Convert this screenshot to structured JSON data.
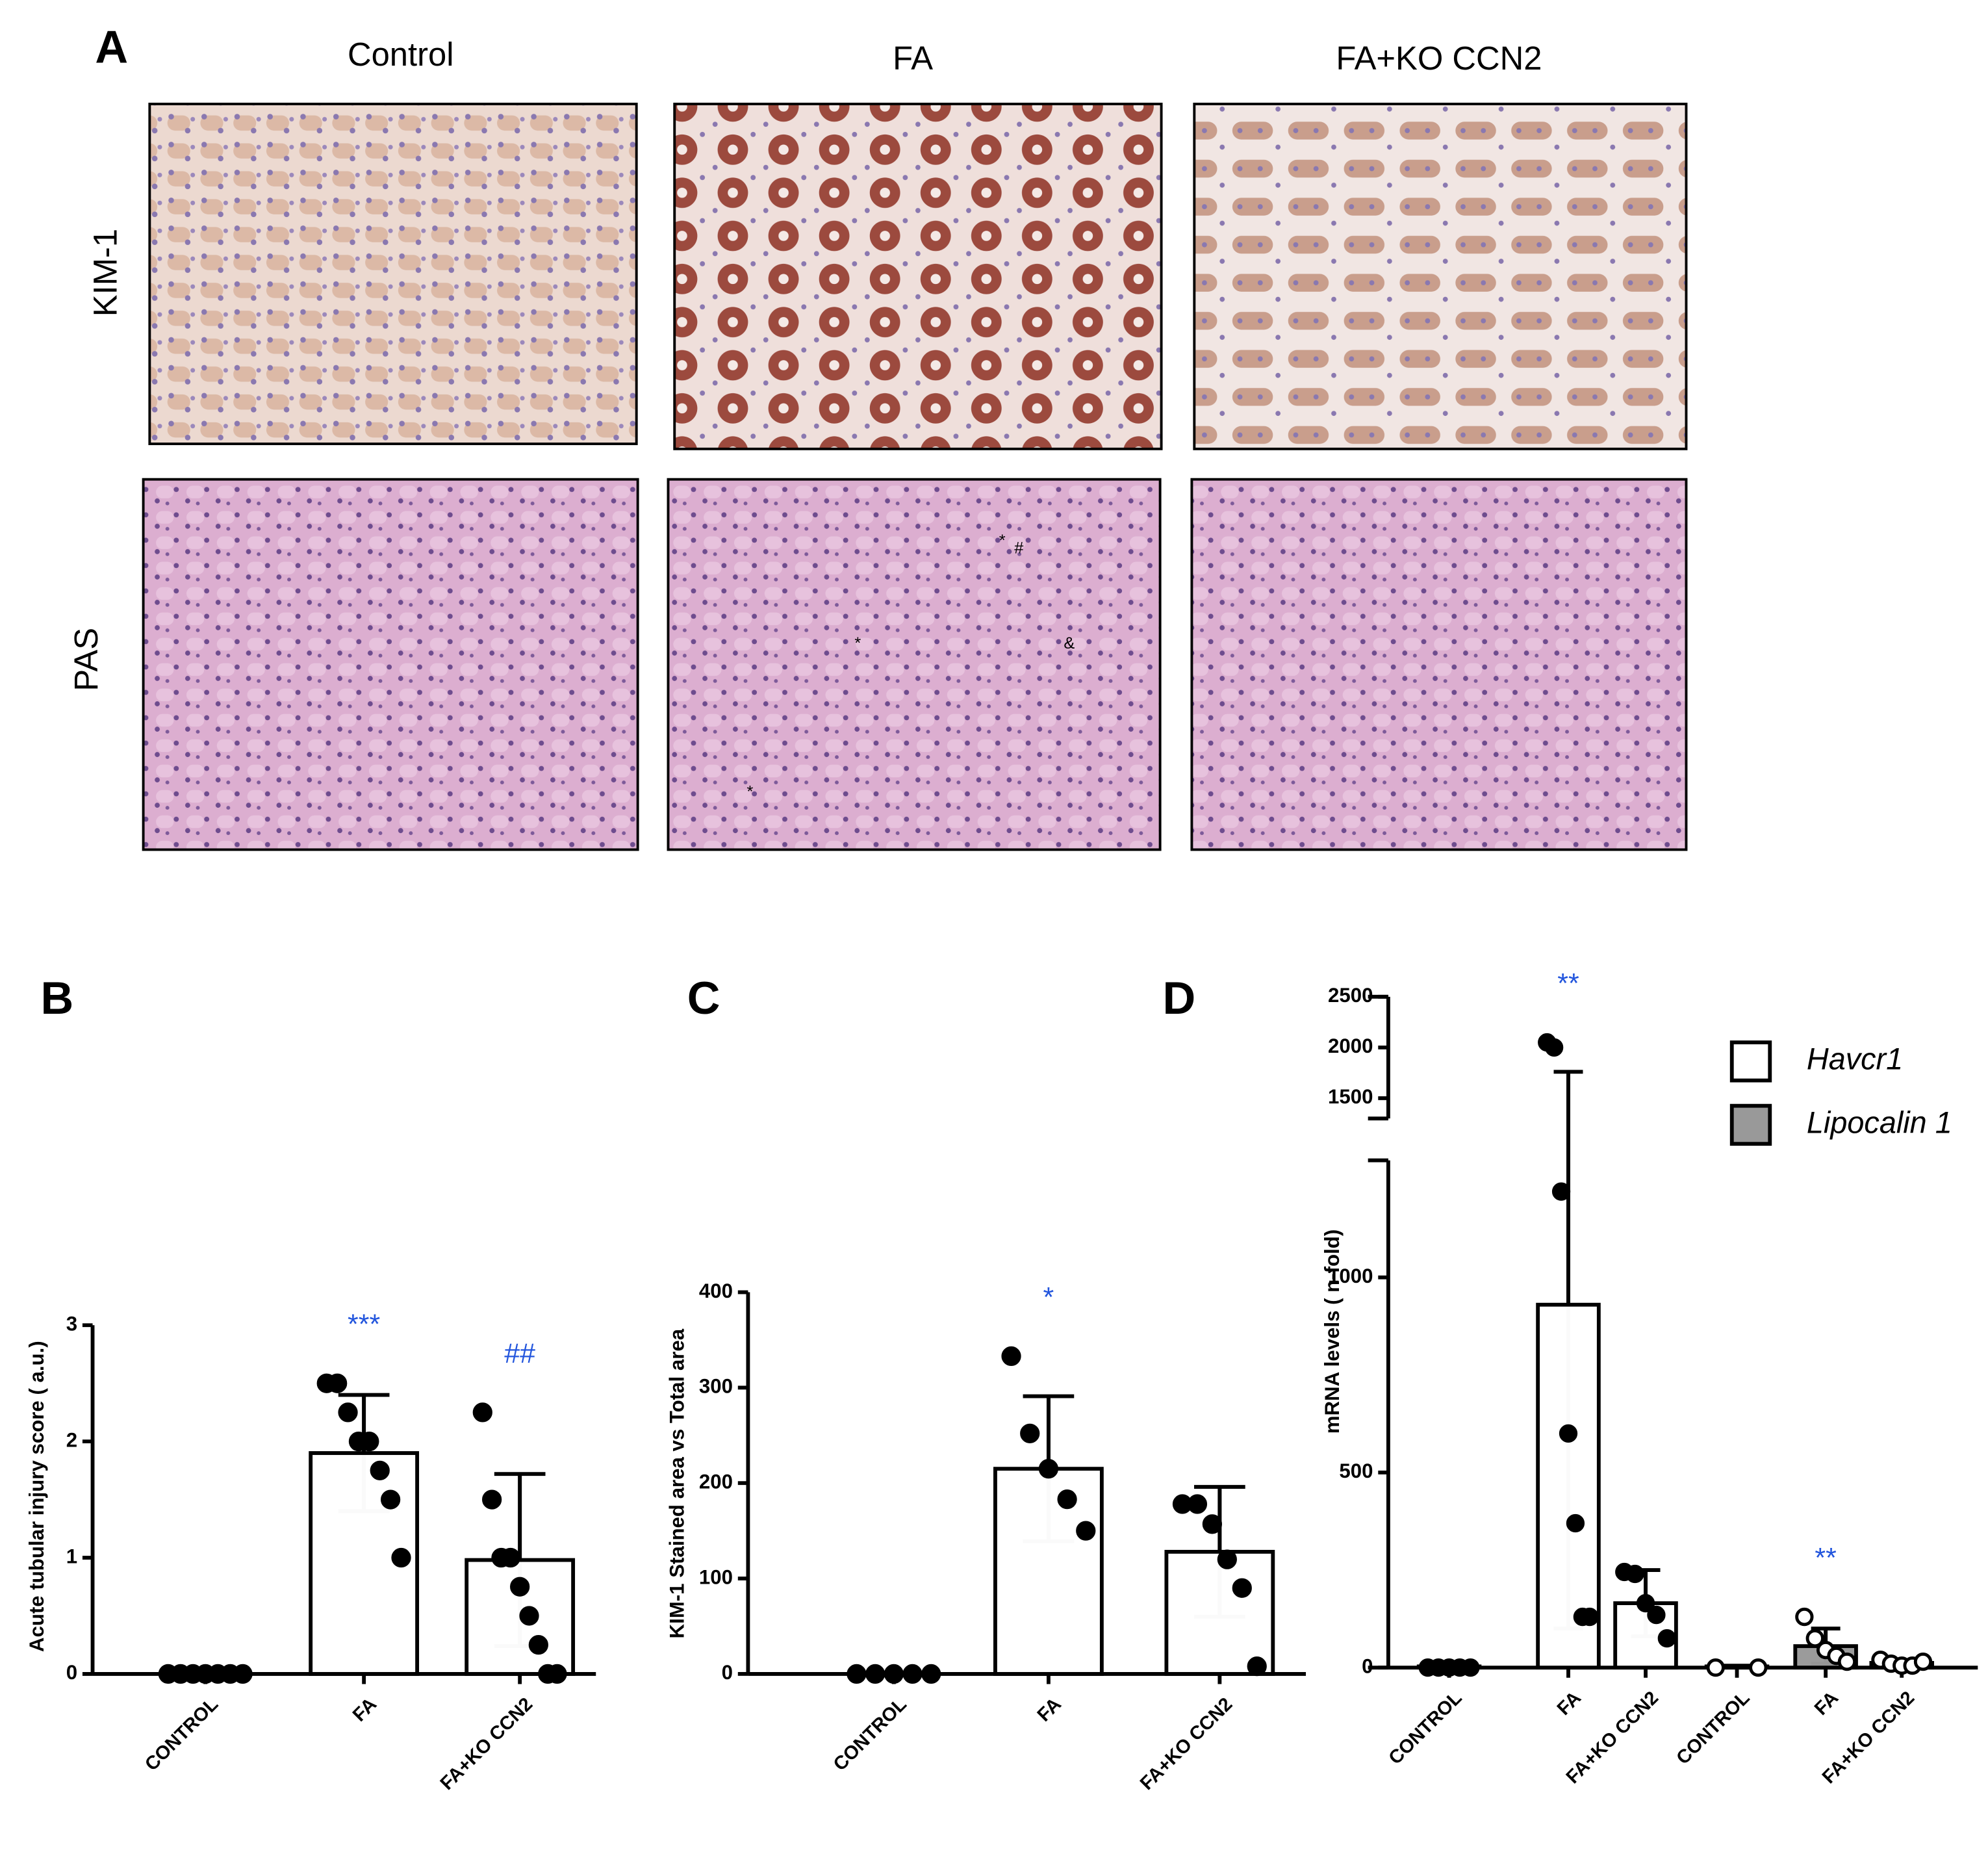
{
  "panel_a": {
    "label": "A",
    "columns": [
      "Control",
      "FA",
      "FA+KO CCN2"
    ],
    "rows": [
      "KIM-1",
      "PAS"
    ],
    "annotations": [
      "*",
      "#",
      "*",
      "&",
      "*"
    ]
  },
  "chart_data": [
    {
      "type": "bar",
      "panel_label": "B",
      "ylabel": "Acute tubular injury score ( a.u.)",
      "categories": [
        "CONTROL",
        "FA",
        "FA+KO CCN2"
      ],
      "values": [
        0,
        1.9,
        0.98
      ],
      "errors": [
        0,
        0.5,
        0.74
      ],
      "points": [
        [
          0,
          0,
          0,
          0,
          0,
          0,
          0
        ],
        [
          2.5,
          2.5,
          2.25,
          2.0,
          2.0,
          1.75,
          1.5,
          1.0
        ],
        [
          2.25,
          1.5,
          1.0,
          1.0,
          0.75,
          0.5,
          0.25,
          0,
          0
        ]
      ],
      "significance": [
        null,
        "***",
        "##"
      ],
      "color": "#ffffff",
      "ylim": [
        0,
        3
      ],
      "yticks": [
        0,
        1,
        2,
        3
      ]
    },
    {
      "type": "bar",
      "panel_label": "C",
      "ylabel": "KIM-1 Stained area vs Total area",
      "categories": [
        "CONTROL",
        "FA",
        "FA+KO CCN2"
      ],
      "values": [
        0,
        215,
        128
      ],
      "errors": [
        0,
        76,
        68
      ],
      "points": [
        [
          0,
          0,
          0,
          0,
          0
        ],
        [
          333,
          252,
          215,
          183,
          150
        ],
        [
          178,
          178,
          157,
          120,
          90,
          8
        ]
      ],
      "significance": [
        null,
        "*",
        null
      ],
      "color": "#ffffff",
      "ylim": [
        0,
        400
      ],
      "yticks": [
        0,
        100,
        200,
        300,
        400
      ]
    },
    {
      "type": "bar",
      "panel_label": "D",
      "ylabel": "mRNA levels ( n-fold)",
      "categories": [
        "CONTROL",
        "FA",
        "FA+KO CCN2",
        "CONTROL",
        "FA",
        "FA+KO CCN2"
      ],
      "series": [
        {
          "name": "Havcr1",
          "color": "#ffffff",
          "marker_color": "#000000",
          "values": [
            3,
            930,
            165,
            null,
            null,
            null
          ],
          "errors": [
            2,
            830,
            85,
            null,
            null,
            null
          ],
          "points": [
            [
              0,
              0,
              0,
              0,
              0
            ],
            [
              2050,
              2000,
              1220,
              600,
              370,
              130,
              130
            ],
            [
              245,
              240,
              165,
              135,
              75
            ],
            null,
            null,
            null
          ],
          "significance": [
            null,
            "**",
            null,
            null,
            null,
            null
          ]
        },
        {
          "name": "Lipocalin 1",
          "color": "#999999",
          "marker_color": "#ffffff",
          "values": [
            null,
            null,
            null,
            3,
            55,
            12
          ],
          "errors": [
            null,
            null,
            null,
            2,
            45,
            6
          ],
          "points": [
            null,
            null,
            null,
            [
              0,
              0
            ],
            [
              130,
              75,
              45,
              30,
              15
            ],
            [
              20,
              10,
              5,
              5,
              15
            ]
          ],
          "significance": [
            null,
            null,
            null,
            null,
            "**",
            null
          ]
        }
      ],
      "y_segments": [
        {
          "ylim": [
            0,
            1300
          ],
          "yticks": [
            0,
            500,
            1000
          ]
        },
        {
          "ylim": [
            1300,
            2500
          ],
          "yticks": [
            1500,
            2000,
            2500
          ]
        }
      ]
    }
  ]
}
